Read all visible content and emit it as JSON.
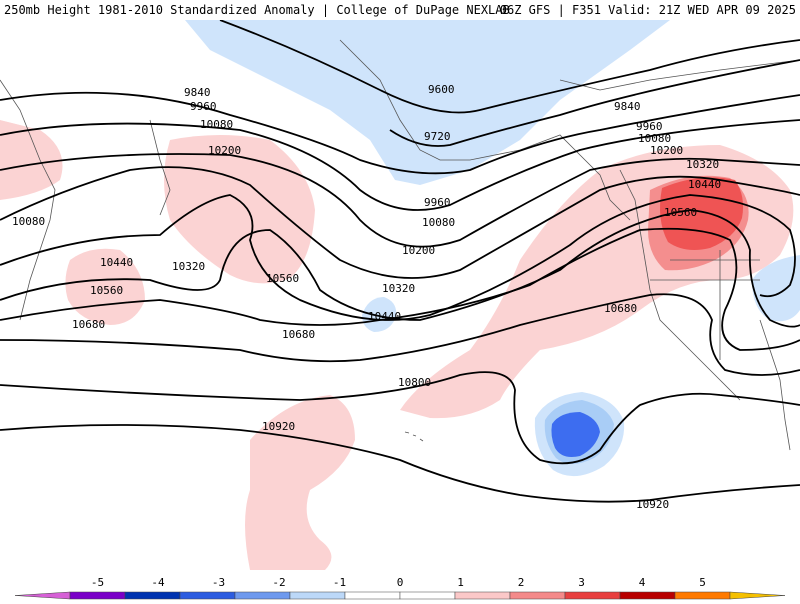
{
  "header": {
    "title": "250mb Height 1981-2010 Standardized Anomaly | College of DuPage NEXLAB",
    "run_info": "06Z GFS | F351 Valid: 21Z WED APR 09 2025"
  },
  "contour_labels": {
    "c9600": "9600",
    "c9720": "9720",
    "c9840_w": "9840",
    "c9840_e": "9840",
    "c9960_w": "9960",
    "c9960_c": "9960",
    "c9960_e": "9960",
    "c10080_w": "10080",
    "c10080_nw": "10080",
    "c10080_c": "10080",
    "c10080_e": "10080",
    "c10200_w": "10200",
    "c10200_c": "10200",
    "c10200_e": "10200",
    "c10320_w": "10320",
    "c10320_c": "10320",
    "c10320_e": "10320",
    "c10440_w": "10440",
    "c10440_c": "10440",
    "c10440_e": "10440",
    "c10560_w": "10560",
    "c10560_c": "10560",
    "c10560_e": "10560",
    "c10680_w": "10680",
    "c10680_c": "10680",
    "c10680_e": "10680",
    "c10800": "10800",
    "c10920_w": "10920",
    "c10920_e": "10920"
  },
  "anomaly_colors": {
    "light_blue": "#cfe4fb",
    "mid_blue": "#a9cdf6",
    "blue": "#3d6df0",
    "light_red": "#fbd3d3",
    "red": "#f48e8e",
    "strong_red": "#ef5454"
  },
  "legend": {
    "ticks": [
      "-5",
      "-4",
      "-3",
      "-2",
      "-1",
      "0",
      "1",
      "2",
      "3",
      "4",
      "5"
    ],
    "colors": [
      "#d660d6",
      "#7a00c8",
      "#0033b0",
      "#2c5ce0",
      "#6e99ee",
      "#bcd8f8",
      "#ffffff",
      "#ffffff",
      "#fbc8c8",
      "#f48a8a",
      "#e84040",
      "#b80000",
      "#ff7a00",
      "#f5c000"
    ]
  }
}
